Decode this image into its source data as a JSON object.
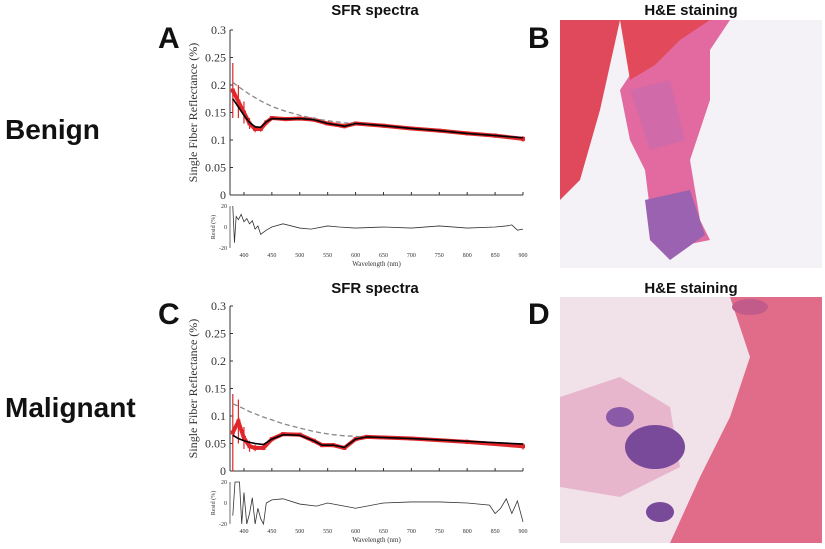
{
  "rows": [
    {
      "label": "Benign"
    },
    {
      "label": "Malignant"
    }
  ],
  "panels": {
    "A": {
      "letter": "A",
      "title": "SFR spectra"
    },
    "B": {
      "letter": "B",
      "title": "H&E staining"
    },
    "C": {
      "letter": "C",
      "title": "SFR spectra"
    },
    "D": {
      "letter": "D",
      "title": "H&E staining"
    }
  },
  "colors": {
    "measured": "#e0262a",
    "fit": "#000000",
    "baseline": "#888888",
    "residual": "#333333"
  },
  "chart_data": [
    {
      "type": "line",
      "panel": "A",
      "ylabel": "Single Fiber Reflectance (%)",
      "xlabel": "Wavelength (nm)",
      "xlim": [
        375,
        900
      ],
      "ylim": [
        0,
        0.3
      ],
      "yticks": [
        "0",
        "0.05",
        "0.1",
        "0.15",
        "0.2",
        "0.25",
        "0.3"
      ],
      "xticks": [
        "400",
        "450",
        "500",
        "550",
        "600",
        "650",
        "700",
        "750",
        "800",
        "850",
        "900"
      ],
      "x": [
        380,
        390,
        400,
        410,
        420,
        430,
        440,
        450,
        475,
        500,
        525,
        550,
        575,
        580,
        600,
        650,
        700,
        750,
        800,
        850,
        900
      ],
      "series": [
        {
          "role": "measured",
          "values": [
            0.19,
            0.17,
            0.15,
            0.13,
            0.12,
            0.12,
            0.132,
            0.14,
            0.138,
            0.139,
            0.137,
            0.13,
            0.126,
            0.125,
            0.13,
            0.126,
            0.121,
            0.117,
            0.112,
            0.108,
            0.102
          ],
          "errors": [
            0.05,
            0.03,
            0.02,
            0.01,
            0.006,
            0.005,
            0.004,
            0.003,
            0.003,
            0.003,
            0.003,
            0.003,
            0.003,
            0.003,
            0.003,
            0.003,
            0.003,
            0.003,
            0.003,
            0.004,
            0.005
          ]
        },
        {
          "role": "fit",
          "values": [
            0.175,
            0.16,
            0.145,
            0.132,
            0.124,
            0.123,
            0.133,
            0.139,
            0.138,
            0.139,
            0.137,
            0.13,
            0.126,
            0.125,
            0.13,
            0.126,
            0.121,
            0.117,
            0.112,
            0.108,
            0.104
          ]
        },
        {
          "role": "baseline",
          "values": [
            0.205,
            0.197,
            0.19,
            0.183,
            0.177,
            0.171,
            0.166,
            0.161,
            0.152,
            0.145,
            0.139,
            0.135,
            0.132,
            0.131,
            0.13,
            0.126,
            0.121,
            0.117,
            0.112,
            0.108,
            0.104
          ]
        }
      ],
      "residual": {
        "ylabel": "Resid (%)",
        "ylim": [
          -20,
          20
        ],
        "yticks": [
          "-20",
          "0",
          "20"
        ],
        "x": [
          380,
          383,
          386,
          390,
          395,
          400,
          405,
          410,
          415,
          420,
          425,
          430,
          440,
          450,
          470,
          500,
          520,
          550,
          570,
          600,
          650,
          700,
          750,
          800,
          850,
          870,
          880,
          890,
          900
        ],
        "values": [
          20,
          -15,
          10,
          7,
          12,
          5,
          8,
          3,
          6,
          -2,
          1,
          -7,
          -3,
          0,
          3,
          -1,
          -2,
          1,
          0,
          -1,
          0,
          -1,
          1,
          -1,
          0,
          1,
          2,
          -3,
          -2
        ]
      }
    },
    {
      "type": "line",
      "panel": "C",
      "ylabel": "Single Fiber Reflectance (%)",
      "xlabel": "Wavelength (nm)",
      "xlim": [
        375,
        900
      ],
      "ylim": [
        0,
        0.3
      ],
      "yticks": [
        "0",
        "0.05",
        "0.1",
        "0.15",
        "0.2",
        "0.25",
        "0.3"
      ],
      "xticks": [
        "400",
        "450",
        "500",
        "550",
        "600",
        "650",
        "700",
        "750",
        "800",
        "850",
        "900"
      ],
      "x": [
        380,
        390,
        400,
        410,
        420,
        435,
        450,
        470,
        500,
        525,
        540,
        560,
        580,
        600,
        620,
        700,
        800,
        900
      ],
      "series": [
        {
          "role": "measured",
          "values": [
            0.07,
            0.09,
            0.06,
            0.045,
            0.042,
            0.042,
            0.058,
            0.067,
            0.066,
            0.055,
            0.047,
            0.047,
            0.042,
            0.058,
            0.062,
            0.059,
            0.053,
            0.045
          ],
          "errors": [
            0.07,
            0.04,
            0.02,
            0.01,
            0.006,
            0.004,
            0.003,
            0.003,
            0.003,
            0.003,
            0.003,
            0.003,
            0.003,
            0.003,
            0.003,
            0.003,
            0.004,
            0.006
          ]
        },
        {
          "role": "fit",
          "values": [
            0.065,
            0.059,
            0.055,
            0.052,
            0.05,
            0.048,
            0.058,
            0.066,
            0.065,
            0.055,
            0.047,
            0.047,
            0.043,
            0.058,
            0.062,
            0.059,
            0.054,
            0.049
          ]
        },
        {
          "role": "baseline",
          "values": [
            0.122,
            0.118,
            0.113,
            0.108,
            0.104,
            0.098,
            0.093,
            0.086,
            0.078,
            0.072,
            0.069,
            0.066,
            0.064,
            0.063,
            0.062,
            0.059,
            0.054,
            0.049
          ]
        }
      ],
      "residual": {
        "ylabel": "Resid (%)",
        "ylim": [
          -20,
          20
        ],
        "yticks": [
          "-20",
          "0",
          "20"
        ],
        "x": [
          380,
          384,
          388,
          392,
          396,
          400,
          405,
          410,
          415,
          420,
          425,
          430,
          435,
          440,
          450,
          470,
          500,
          530,
          550,
          580,
          600,
          650,
          700,
          750,
          800,
          840,
          850,
          860,
          870,
          880,
          890,
          900
        ],
        "values": [
          -12,
          20,
          20,
          20,
          -20,
          10,
          -20,
          -10,
          5,
          -20,
          -5,
          -15,
          -20,
          0,
          3,
          4,
          -1,
          -3,
          0,
          -3,
          -5,
          0,
          1,
          1,
          0,
          -2,
          -10,
          -5,
          4,
          -10,
          2,
          -18
        ]
      }
    }
  ]
}
